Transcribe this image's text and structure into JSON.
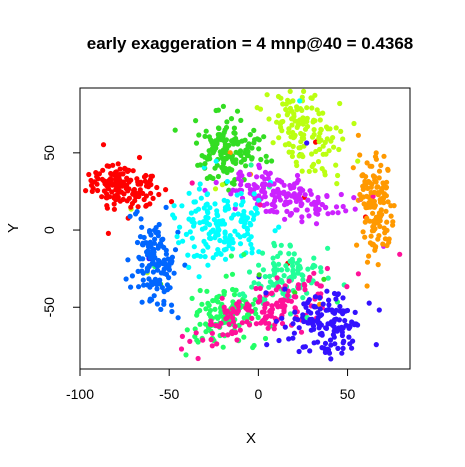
{
  "chart_data": {
    "type": "scatter",
    "title": "early exaggeration = 4 mnp@40 = 0.4368",
    "xlabel": "X",
    "ylabel": "Y",
    "xlim": [
      -100,
      85
    ],
    "ylim": [
      -90,
      92
    ],
    "xticks": [
      -100,
      -50,
      0,
      50
    ],
    "yticks": [
      -50,
      0,
      50
    ],
    "xtick_labels": [
      "-100",
      "-50",
      "0",
      "50"
    ],
    "ytick_labels": [
      "-50",
      "0",
      "50"
    ],
    "grid": false,
    "legend": "none",
    "clusters": [
      {
        "color": "#ff0000",
        "cx": -75,
        "cy": 29,
        "sx": 10,
        "sy": 8,
        "angle": -10,
        "n": 150
      },
      {
        "color": "#0066ff",
        "cx": -58,
        "cy": -23,
        "sx": 6,
        "sy": 14,
        "angle": 5,
        "n": 140
      },
      {
        "color": "#33dd22",
        "cx": -15,
        "cy": 50,
        "sx": 11,
        "sy": 10,
        "angle": 0,
        "n": 150
      },
      {
        "color": "#bbff11",
        "cx": 25,
        "cy": 64,
        "sx": 9,
        "sy": 14,
        "angle": 20,
        "n": 140
      },
      {
        "color": "#cc22ff",
        "cx": 15,
        "cy": 22,
        "sx": 18,
        "sy": 7,
        "angle": -15,
        "n": 160
      },
      {
        "color": "#ff9900",
        "cx": 65,
        "cy": 20,
        "sx": 5,
        "sy": 18,
        "angle": 0,
        "n": 140
      },
      {
        "color": "#00ffff",
        "cx": -20,
        "cy": 5,
        "sx": 12,
        "sy": 12,
        "angle": 20,
        "n": 160
      },
      {
        "color": "#22ff66",
        "cx": -20,
        "cy": -55,
        "sx": 10,
        "sy": 10,
        "angle": 0,
        "n": 120
      },
      {
        "color": "#22ff99",
        "cx": 15,
        "cy": -28,
        "sx": 12,
        "sy": 8,
        "angle": 30,
        "n": 100
      },
      {
        "color": "#ff1199",
        "cx": 5,
        "cy": -52,
        "sx": 22,
        "sy": 7,
        "angle": 25,
        "n": 150
      },
      {
        "color": "#3311ff",
        "cx": 38,
        "cy": -62,
        "sx": 12,
        "sy": 11,
        "angle": 20,
        "n": 150
      }
    ]
  }
}
